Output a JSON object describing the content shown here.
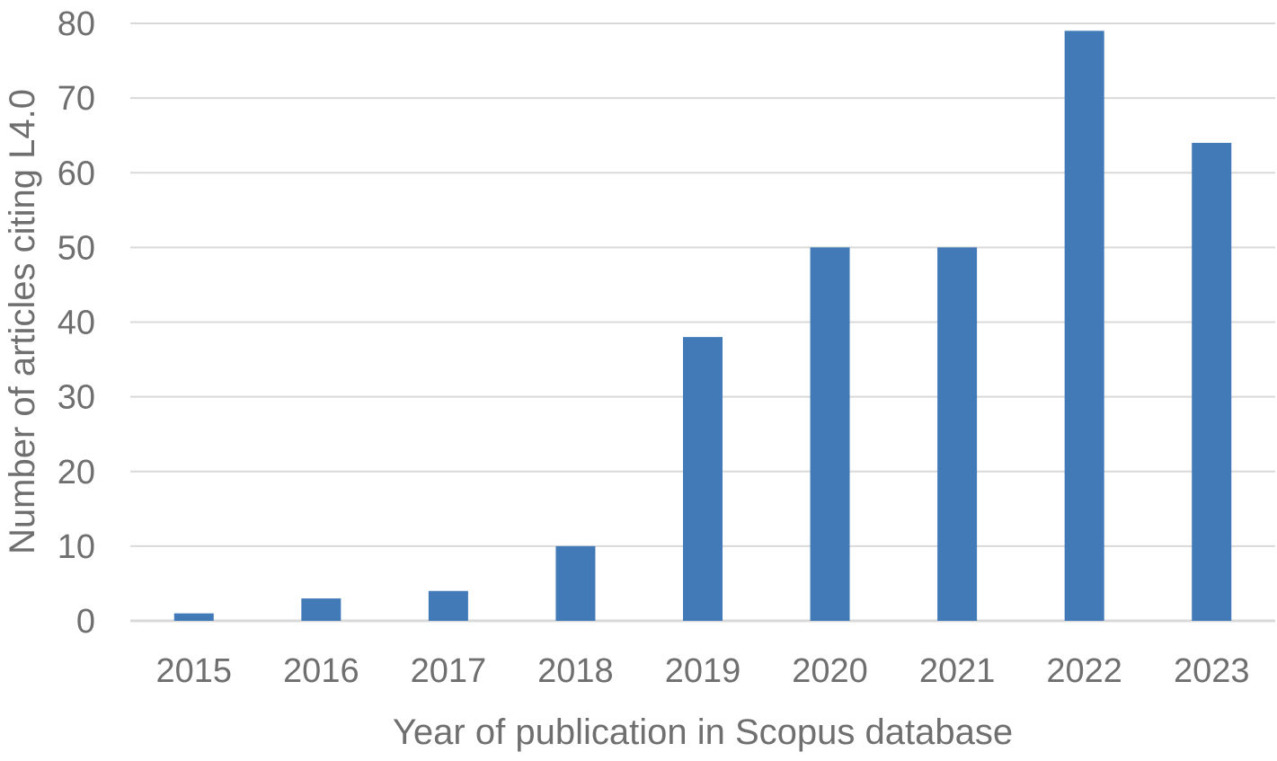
{
  "chart_data": {
    "type": "bar",
    "title": "",
    "xlabel": "Year of publication  in Scopus database",
    "ylabel": "Number of articles citing L4.0",
    "categories": [
      "2015",
      "2016",
      "2017",
      "2018",
      "2019",
      "2020",
      "2021",
      "2022",
      "2023"
    ],
    "series": [
      {
        "values": [
          1,
          3,
          4,
          10,
          38,
          50,
          50,
          79,
          64
        ]
      }
    ],
    "ylim": [
      0,
      80
    ],
    "yticks": [
      "0",
      "10",
      "20",
      "30",
      "40",
      "50",
      "60",
      "70",
      "80"
    ],
    "grid": true,
    "legend": "none",
    "colors": {
      "bar": "#427ab8",
      "grid": "#d9d9d9",
      "text": "#6f6f6f"
    }
  }
}
